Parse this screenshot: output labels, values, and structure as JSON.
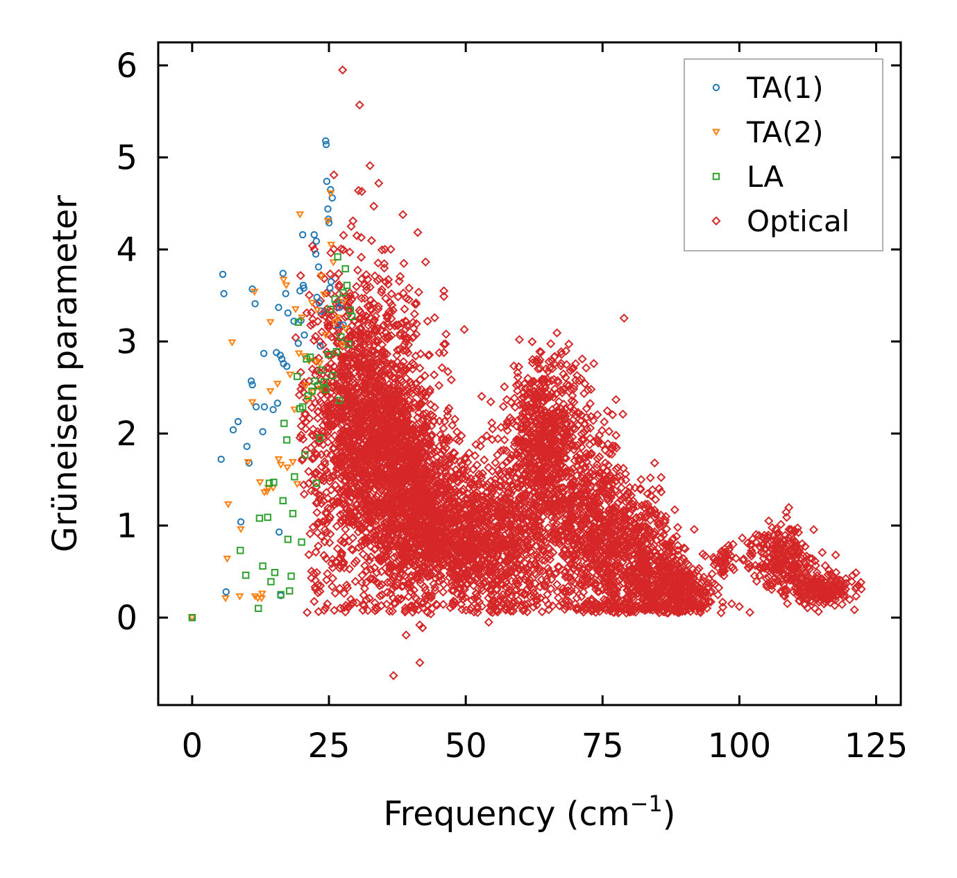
{
  "chart_data": {
    "type": "scatter",
    "title": "",
    "xlabel": "Frequency (cm",
    "xlabel_sup": "−1",
    "xlabel_close": ")",
    "ylabel": "Grüneisen parameter",
    "xlim": [
      -6.2,
      129.5
    ],
    "ylim": [
      -0.95,
      6.25
    ],
    "xticks": [
      0,
      25,
      50,
      75,
      100,
      125
    ],
    "yticks": [
      0,
      1,
      2,
      3,
      4,
      5,
      6
    ],
    "xtick_labels": [
      "0",
      "25",
      "50",
      "75",
      "100",
      "125"
    ],
    "ytick_labels": [
      "0",
      "1",
      "2",
      "3",
      "4",
      "5",
      "6"
    ],
    "legend_position": "top-right",
    "series": [
      {
        "name": "TA(1)",
        "label": "TA(1)",
        "marker": "circle",
        "color": "#1f77b4",
        "points": [
          [
            0,
            0
          ],
          [
            5.3,
            1.72
          ],
          [
            5.6,
            3.73
          ],
          [
            5.8,
            3.52
          ],
          [
            6.2,
            0.28
          ],
          [
            7.5,
            2.04
          ],
          [
            8.4,
            2.13
          ],
          [
            8.9,
            1.04
          ],
          [
            10.0,
            1.86
          ],
          [
            10.4,
            1.68
          ],
          [
            10.8,
            2.57
          ],
          [
            11.0,
            3.57
          ],
          [
            11.0,
            2.53
          ],
          [
            11.5,
            3.41
          ],
          [
            11.7,
            2.29
          ],
          [
            12.9,
            2.02
          ],
          [
            13.1,
            2.87
          ],
          [
            13.2,
            2.29
          ],
          [
            14.8,
            2.26
          ],
          [
            15.4,
            2.88
          ],
          [
            15.6,
            2.33
          ],
          [
            15.8,
            3.37
          ],
          [
            15.9,
            0.93
          ],
          [
            16.1,
            2.85
          ],
          [
            16.2,
            0.24
          ],
          [
            16.4,
            2.81
          ],
          [
            16.6,
            3.74
          ],
          [
            16.7,
            2.76
          ],
          [
            17.1,
            3.52
          ],
          [
            17.3,
            2.73
          ],
          [
            17.5,
            3.31
          ],
          [
            18.6,
            3.22
          ],
          [
            19.4,
            2.98
          ],
          [
            19.7,
            3.55
          ],
          [
            19.9,
            3.23
          ],
          [
            20.2,
            4.16
          ],
          [
            20.3,
            3.61
          ],
          [
            20.4,
            3.58
          ],
          [
            20.5,
            3.07
          ],
          [
            22.3,
            4.16
          ],
          [
            22.6,
            3.95
          ],
          [
            22.7,
            4.09
          ],
          [
            22.8,
            3.48
          ],
          [
            23.1,
            3.81
          ],
          [
            23.2,
            3.42
          ],
          [
            23.4,
            2.95
          ],
          [
            23.6,
            3.33
          ],
          [
            24.4,
            5.18
          ],
          [
            24.5,
            5.14
          ],
          [
            24.6,
            4.74
          ],
          [
            24.8,
            4.44
          ],
          [
            24.9,
            4.33
          ],
          [
            25.0,
            4.29
          ],
          [
            25.2,
            3.58
          ],
          [
            25.3,
            4.65
          ],
          [
            25.4,
            3.65
          ],
          [
            25.6,
            4.56
          ],
          [
            26.6,
            3.18
          ],
          [
            26.9,
            3.37
          ],
          [
            27.3,
            3.42
          ],
          [
            27.6,
            3.18
          ]
        ]
      },
      {
        "name": "TA(2)",
        "label": "TA(2)",
        "marker": "triangle-down",
        "color": "#ff7f0e",
        "points": [
          [
            0,
            0
          ],
          [
            6.1,
            0.21
          ],
          [
            6.4,
            0.64
          ],
          [
            6.6,
            1.23
          ],
          [
            7.3,
            2.99
          ],
          [
            8.7,
            0.23
          ],
          [
            8.9,
            0.96
          ],
          [
            10.2,
            1.69
          ],
          [
            11.0,
            2.34
          ],
          [
            11.4,
            3.54
          ],
          [
            11.5,
            0.23
          ],
          [
            12.0,
            0.21
          ],
          [
            12.4,
            1.47
          ],
          [
            12.7,
            0.21
          ],
          [
            12.8,
            0.26
          ],
          [
            13.2,
            1.36
          ],
          [
            13.7,
            1.37
          ],
          [
            13.9,
            1.41
          ],
          [
            14.3,
            2.46
          ],
          [
            14.3,
            3.21
          ],
          [
            14.8,
            1.41
          ],
          [
            15.6,
            2.54
          ],
          [
            15.8,
            1.72
          ],
          [
            16.2,
            1.66
          ],
          [
            16.7,
            3.67
          ],
          [
            17.2,
            3.61
          ],
          [
            17.4,
            1.63
          ],
          [
            17.9,
            2.64
          ],
          [
            18.4,
            1.69
          ],
          [
            18.7,
            2.26
          ],
          [
            18.9,
            3.35
          ],
          [
            19.2,
            1.45
          ],
          [
            19.5,
            2.87
          ],
          [
            19.7,
            4.38
          ],
          [
            20.1,
            3.26
          ],
          [
            20.5,
            2.84
          ],
          [
            20.8,
            2.52
          ],
          [
            21.1,
            2.37
          ],
          [
            21.4,
            2.79
          ],
          [
            21.9,
            3.42
          ],
          [
            22.1,
            2.45
          ],
          [
            22.6,
            2.78
          ],
          [
            22.9,
            3.34
          ],
          [
            23.3,
            2.76
          ],
          [
            23.5,
            2.49
          ],
          [
            23.6,
            3.71
          ],
          [
            24.1,
            3.51
          ],
          [
            24.4,
            3.07
          ],
          [
            24.8,
            4.31
          ],
          [
            25.3,
            4.61
          ],
          [
            25.4,
            4.05
          ],
          [
            25.8,
            3.86
          ],
          [
            26.1,
            3.21
          ],
          [
            26.7,
            3.26
          ],
          [
            27.4,
            2.96
          ],
          [
            27.7,
            3.43
          ],
          [
            28.0,
            3.14
          ]
        ]
      },
      {
        "name": "LA",
        "label": "LA",
        "marker": "square",
        "color": "#2ca02c",
        "points": [
          [
            0,
            0
          ],
          [
            8.8,
            0.73
          ],
          [
            9.8,
            0.46
          ],
          [
            12.1,
            0.1
          ],
          [
            12.3,
            1.08
          ],
          [
            12.9,
            0.56
          ],
          [
            13.8,
            1.09
          ],
          [
            14.1,
            1.46
          ],
          [
            14.4,
            0.39
          ],
          [
            14.9,
            1.47
          ],
          [
            15.1,
            0.49
          ],
          [
            16.2,
            0.25
          ],
          [
            16.6,
            1.27
          ],
          [
            16.8,
            2.11
          ],
          [
            17.3,
            1.93
          ],
          [
            17.5,
            0.85
          ],
          [
            17.8,
            0.29
          ],
          [
            18.1,
            0.45
          ],
          [
            18.4,
            1.13
          ],
          [
            18.7,
            1.53
          ],
          [
            19.2,
            2.62
          ],
          [
            19.4,
            3.21
          ],
          [
            19.7,
            2.27
          ],
          [
            20.0,
            0.82
          ],
          [
            20.2,
            2.29
          ],
          [
            20.6,
            1.77
          ],
          [
            20.9,
            2.81
          ],
          [
            21.2,
            2.41
          ],
          [
            21.6,
            2.83
          ],
          [
            21.9,
            2.46
          ],
          [
            22.4,
            2.57
          ],
          [
            22.7,
            1.46
          ],
          [
            23.0,
            2.52
          ],
          [
            23.3,
            1.95
          ],
          [
            23.6,
            2.69
          ],
          [
            24.1,
            2.56
          ],
          [
            24.4,
            2.48
          ],
          [
            24.9,
            2.86
          ],
          [
            25.3,
            3.35
          ],
          [
            25.7,
            2.63
          ],
          [
            26.1,
            3.46
          ],
          [
            26.4,
            2.89
          ],
          [
            26.6,
            3.92
          ],
          [
            26.9,
            2.36
          ],
          [
            27.2,
            3.05
          ],
          [
            27.6,
            3.53
          ],
          [
            28.0,
            3.79
          ],
          [
            28.3,
            3.61
          ],
          [
            28.6,
            2.97
          ],
          [
            28.9,
            3.34
          ],
          [
            29.2,
            3.27
          ]
        ]
      },
      {
        "name": "Optical",
        "label": "Optical",
        "marker": "diamond",
        "color": "#d62728",
        "outliers": [
          [
            27.5,
            5.95
          ],
          [
            30.6,
            5.57
          ],
          [
            32.5,
            4.91
          ],
          [
            25.9,
            4.81
          ],
          [
            30.4,
            4.64
          ],
          [
            31.0,
            4.63
          ],
          [
            33.2,
            4.47
          ],
          [
            30.1,
            4.15
          ],
          [
            30.9,
            4.13
          ],
          [
            22.0,
            4.04
          ],
          [
            46.0,
            3.55
          ],
          [
            46.0,
            3.49
          ],
          [
            46.4,
            3.08
          ],
          [
            46.0,
            2.97
          ],
          [
            46.0,
            2.88
          ],
          [
            30.1,
            0.16
          ],
          [
            33.4,
            0.16
          ],
          [
            34.6,
            0.13
          ],
          [
            36.6,
            0.07
          ],
          [
            39.1,
            -0.19
          ],
          [
            41.6,
            -0.08
          ],
          [
            42.1,
            -0.11
          ],
          [
            41.6,
            -0.49
          ],
          [
            36.8,
            -0.63
          ],
          [
            43.6,
            0.04
          ],
          [
            51.1,
            0.19
          ],
          [
            54.2,
            -0.05
          ],
          [
            23.0,
            0.27
          ],
          [
            29.4,
            0.16
          ],
          [
            47.7,
            0.13
          ],
          [
            98.6,
            0.15
          ],
          [
            100.0,
            0.12
          ],
          [
            57.3,
            0.12
          ],
          [
            49.9,
            1.74
          ],
          [
            52.9,
            1.93
          ],
          [
            54.9,
            2.05
          ],
          [
            60.2,
            2.18
          ],
          [
            60.4,
            2.33
          ],
          [
            67.5,
            2.86
          ],
          [
            71.3,
            2.81
          ],
          [
            73.4,
            2.76
          ],
          [
            70.1,
            2.58
          ],
          [
            72.9,
            2.48
          ],
          [
            74.4,
            1.98
          ],
          [
            75.5,
            1.68
          ],
          [
            77.7,
            1.53
          ],
          [
            89.8,
            0.64
          ],
          [
            90.6,
            0.58
          ],
          [
            93.5,
            0.44
          ],
          [
            108.4,
            0.71
          ],
          [
            113.3,
            0.64
          ],
          [
            117.6,
            0.68
          ],
          [
            121.4,
            0.33
          ],
          [
            122.3,
            0.31
          ],
          [
            98.1,
            0.74
          ]
        ],
        "clusters": [
          {
            "cx": 32.0,
            "cy": 2.2,
            "sx": 5.0,
            "sy": 0.75,
            "n": 1400
          },
          {
            "cx": 38.5,
            "cy": 1.45,
            "sx": 4.5,
            "sy": 0.6,
            "n": 900
          },
          {
            "cx": 43.5,
            "cy": 1.0,
            "sx": 5.0,
            "sy": 0.45,
            "n": 700
          },
          {
            "cx": 52.0,
            "cy": 0.9,
            "sx": 4.0,
            "sy": 0.4,
            "n": 450
          },
          {
            "cx": 58.5,
            "cy": 0.75,
            "sx": 3.5,
            "sy": 0.45,
            "n": 400
          },
          {
            "cx": 63.5,
            "cy": 2.0,
            "sx": 3.0,
            "sy": 0.4,
            "n": 450
          },
          {
            "cx": 67.5,
            "cy": 1.4,
            "sx": 3.5,
            "sy": 0.6,
            "n": 400
          },
          {
            "cx": 72.0,
            "cy": 1.0,
            "sx": 3.5,
            "sy": 0.55,
            "n": 350
          },
          {
            "cx": 78.5,
            "cy": 0.7,
            "sx": 4.0,
            "sy": 0.45,
            "n": 550
          },
          {
            "cx": 84.0,
            "cy": 0.45,
            "sx": 4.0,
            "sy": 0.3,
            "n": 350
          },
          {
            "cx": 90.5,
            "cy": 0.25,
            "sx": 3.0,
            "sy": 0.15,
            "n": 200
          },
          {
            "cx": 107.5,
            "cy": 0.65,
            "sx": 2.8,
            "sy": 0.18,
            "n": 250
          },
          {
            "cx": 115.0,
            "cy": 0.3,
            "sx": 3.0,
            "sy": 0.1,
            "n": 200
          },
          {
            "cx": 97.0,
            "cy": 0.62,
            "sx": 0.9,
            "sy": 0.08,
            "n": 40
          },
          {
            "cx": 26.5,
            "cy": 1.5,
            "sx": 3.0,
            "sy": 0.9,
            "n": 180
          }
        ]
      }
    ]
  }
}
